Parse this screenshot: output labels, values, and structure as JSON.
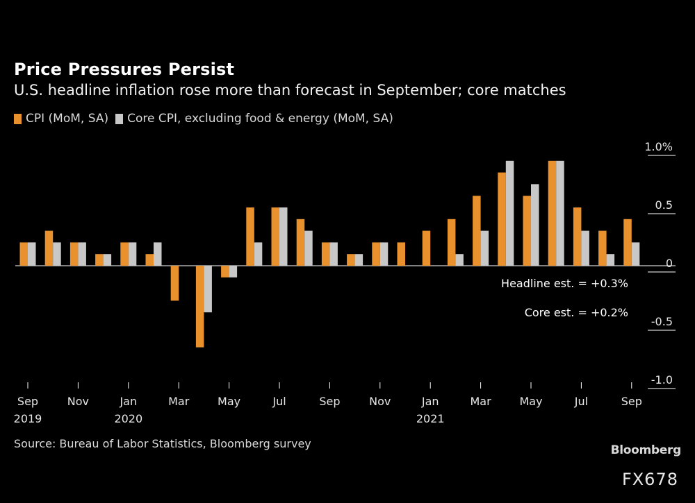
{
  "header": {
    "title": "Price Pressures Persist",
    "subtitle": "U.S. headline inflation rose more than forecast in September; core matches"
  },
  "legend": {
    "items": [
      {
        "label": "CPI (MoM, SA)",
        "color": "#e8912d"
      },
      {
        "label": "Core CPI, excluding food & energy (MoM, SA)",
        "color": "#c8c8c8"
      }
    ]
  },
  "chart_data": {
    "type": "bar",
    "title": "Price Pressures Persist",
    "xlabel": "",
    "ylabel": "",
    "ylim": [
      -1.0,
      1.0
    ],
    "yticks": [
      {
        "value": 1.0,
        "label": "1.0%"
      },
      {
        "value": 0.5,
        "label": "0.5"
      },
      {
        "value": 0,
        "label": "0"
      },
      {
        "value": -0.5,
        "label": "-0.5"
      },
      {
        "value": -1.0,
        "label": "-1.0"
      }
    ],
    "categories": [
      "Sep 2019",
      "Oct 2019",
      "Nov 2019",
      "Dec 2019",
      "Jan 2020",
      "Feb 2020",
      "Mar 2020",
      "Apr 2020",
      "May 2020",
      "Jun 2020",
      "Jul 2020",
      "Aug 2020",
      "Sep 2020",
      "Oct 2020",
      "Nov 2020",
      "Dec 2020",
      "Jan 2021",
      "Feb 2021",
      "Mar 2021",
      "Apr 2021",
      "May 2021",
      "Jun 2021",
      "Jul 2021",
      "Aug 2021",
      "Sep 2021"
    ],
    "series": [
      {
        "name": "CPI (MoM, SA)",
        "color": "#e8912d",
        "values": [
          0.2,
          0.3,
          0.2,
          0.1,
          0.2,
          0.1,
          -0.3,
          -0.7,
          -0.1,
          0.5,
          0.5,
          0.4,
          0.2,
          0.1,
          0.2,
          0.2,
          0.3,
          0.4,
          0.6,
          0.8,
          0.6,
          0.9,
          0.5,
          0.3,
          0.4
        ]
      },
      {
        "name": "Core CPI, excluding food & energy (MoM, SA)",
        "color": "#c8c8c8",
        "values": [
          0.2,
          0.2,
          0.2,
          0.1,
          0.2,
          0.2,
          null,
          -0.4,
          -0.1,
          0.2,
          0.5,
          0.3,
          0.2,
          0.1,
          0.2,
          null,
          null,
          0.1,
          0.3,
          0.9,
          0.7,
          0.9,
          0.3,
          0.1,
          0.2
        ]
      }
    ],
    "xticks": [
      {
        "index": 0,
        "label": "Sep",
        "year": "2019"
      },
      {
        "index": 2,
        "label": "Nov",
        "year": ""
      },
      {
        "index": 4,
        "label": "Jan",
        "year": "2020"
      },
      {
        "index": 6,
        "label": "Mar",
        "year": ""
      },
      {
        "index": 8,
        "label": "May",
        "year": ""
      },
      {
        "index": 10,
        "label": "Jul",
        "year": ""
      },
      {
        "index": 12,
        "label": "Sep",
        "year": ""
      },
      {
        "index": 14,
        "label": "Nov",
        "year": ""
      },
      {
        "index": 16,
        "label": "Jan",
        "year": "2021"
      },
      {
        "index": 18,
        "label": "Mar",
        "year": ""
      },
      {
        "index": 20,
        "label": "May",
        "year": ""
      },
      {
        "index": 22,
        "label": "Jul",
        "year": ""
      },
      {
        "index": 24,
        "label": "Sep",
        "year": ""
      }
    ],
    "annotations": [
      {
        "text": "Headline est. = +0.3%"
      },
      {
        "text": "Core est. = +0.2%"
      }
    ]
  },
  "footer": {
    "source": "Source: Bureau of Labor Statistics, Bloomberg survey",
    "brand": "Bloomberg",
    "code": "FX678"
  }
}
